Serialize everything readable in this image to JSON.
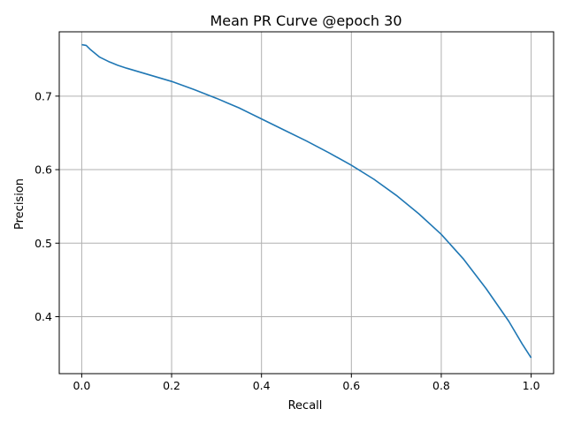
{
  "chart_data": {
    "type": "line",
    "title": "Mean PR Curve @epoch 30",
    "xlabel": "Recall",
    "ylabel": "Precision",
    "xlim": [
      -0.05,
      1.05
    ],
    "ylim": [
      0.3225,
      0.7875
    ],
    "grid": true,
    "line_color": "#1f77b4",
    "x_ticks": [
      0.0,
      0.2,
      0.4,
      0.6,
      0.8,
      1.0
    ],
    "x_tick_labels": [
      "0.0",
      "0.2",
      "0.4",
      "0.6",
      "0.8",
      "1.0"
    ],
    "y_ticks": [
      0.4,
      0.5,
      0.6,
      0.7
    ],
    "y_tick_labels": [
      "0.4",
      "0.5",
      "0.6",
      "0.7"
    ],
    "series": [
      {
        "x": [
          0.0,
          0.01,
          0.02,
          0.04,
          0.06,
          0.08,
          0.1,
          0.15,
          0.2,
          0.25,
          0.3,
          0.35,
          0.4,
          0.45,
          0.5,
          0.55,
          0.6,
          0.65,
          0.7,
          0.75,
          0.8,
          0.85,
          0.9,
          0.95,
          0.98,
          1.0
        ],
        "y": [
          0.77,
          0.769,
          0.763,
          0.753,
          0.747,
          0.742,
          0.738,
          0.729,
          0.72,
          0.709,
          0.697,
          0.684,
          0.669,
          0.654,
          0.639,
          0.623,
          0.606,
          0.587,
          0.565,
          0.54,
          0.512,
          0.478,
          0.438,
          0.394,
          0.363,
          0.344
        ]
      }
    ]
  }
}
